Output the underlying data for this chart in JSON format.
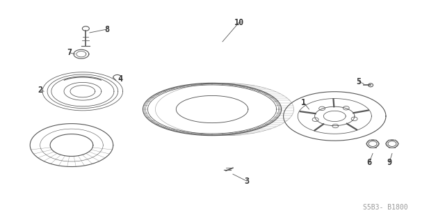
{
  "bg_color": "#ffffff",
  "line_color": "#555555",
  "text_color": "#333333",
  "diagram_code": "S5B3- B1800",
  "label_fs": 8.5,
  "small_fs": 7.0
}
